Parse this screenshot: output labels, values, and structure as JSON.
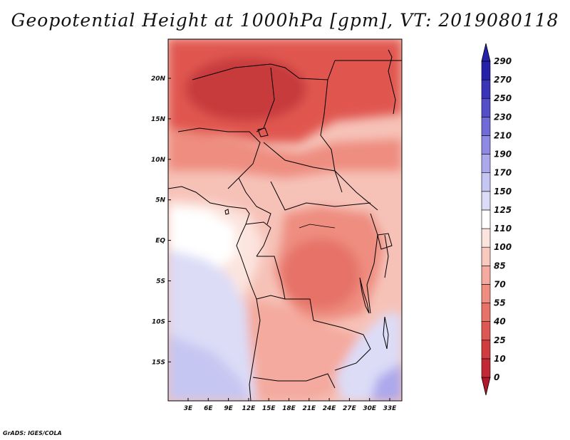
{
  "title": "Geopotential Height at 1000hPa [gpm], VT: 2019080118",
  "credit": "GrADS: IGES/COLA",
  "map": {
    "lat_labels": [
      "20N",
      "15N",
      "10N",
      "5N",
      "EQ",
      "5S",
      "10S",
      "15S"
    ],
    "lon_labels": [
      "3E",
      "6E",
      "9E",
      "12E",
      "15E",
      "18E",
      "21E",
      "24E",
      "27E",
      "30E",
      "33E"
    ],
    "colorbar": {
      "levels": [
        "0",
        "10",
        "25",
        "40",
        "55",
        "70",
        "85",
        "100",
        "110",
        "125",
        "150",
        "170",
        "190",
        "210",
        "230",
        "250",
        "270",
        "290"
      ],
      "colors": [
        "#b2182b",
        "#c22a35",
        "#d13d3f",
        "#dd5753",
        "#e67268",
        "#ee8d80",
        "#f4aa9e",
        "#f9c8bf",
        "#fce4de",
        "#ffffff",
        "#dcdcf7",
        "#c6c6f2",
        "#aba8ec",
        "#8e89e2",
        "#706bd6",
        "#544ec8",
        "#3a34b8",
        "#2621a8"
      ]
    }
  }
}
